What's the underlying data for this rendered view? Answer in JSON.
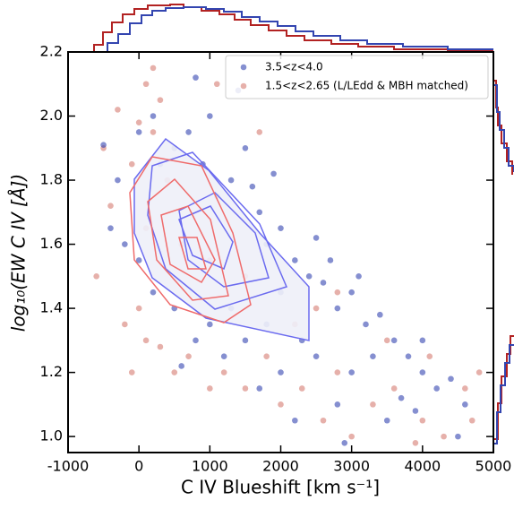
{
  "chart_data": {
    "type": "scatter",
    "xlabel": "C IV Blueshift [km s⁻¹]",
    "ylabel": "log₁₀(EW C IV [Å])",
    "xlim": [
      -1000,
      5000
    ],
    "ylim": [
      0.95,
      2.2
    ],
    "xticks": [
      -1000,
      0,
      1000,
      2000,
      3000,
      4000,
      5000
    ],
    "yticks": [
      {
        "value": 1,
        "label": "1.0"
      },
      1.2,
      1.4,
      1.6,
      1.8,
      {
        "value": 2,
        "label": "2.0"
      },
      2.2
    ],
    "legend": "upper right",
    "series": [
      {
        "name": "3.5<z<4.0",
        "color": "#3345b0",
        "x": [
          -500,
          -300,
          0,
          200,
          300,
          500,
          700,
          900,
          1000,
          1100,
          1300,
          1500,
          1600,
          1700,
          1800,
          2000,
          2200,
          2400,
          2600,
          2800,
          3000,
          3200,
          3400,
          3600,
          3800,
          4000,
          4200,
          4400,
          4600,
          3000,
          2800,
          3500,
          3700,
          2500,
          2300,
          2000,
          1800,
          1500,
          1200,
          1000,
          800,
          500,
          200,
          0,
          -200,
          1300,
          2000,
          3300,
          4000,
          3900,
          2900,
          4500,
          1900,
          2500,
          2700,
          3100,
          600,
          1700,
          2200,
          1400,
          800,
          -400
        ],
        "y": [
          1.91,
          1.8,
          1.95,
          2.0,
          1.85,
          1.9,
          1.95,
          1.85,
          2.0,
          1.75,
          1.8,
          1.9,
          1.78,
          1.7,
          1.6,
          1.65,
          1.55,
          1.5,
          1.48,
          1.4,
          1.45,
          1.35,
          1.38,
          1.3,
          1.25,
          1.2,
          1.15,
          1.18,
          1.1,
          1.2,
          1.1,
          1.05,
          1.12,
          1.25,
          1.3,
          1.2,
          1.35,
          1.3,
          1.25,
          1.35,
          1.3,
          1.4,
          1.45,
          1.55,
          1.6,
          1.4,
          1.45,
          1.25,
          1.3,
          1.08,
          0.98,
          1.0,
          1.82,
          1.62,
          1.55,
          1.5,
          1.22,
          1.15,
          1.05,
          2.08,
          2.12,
          1.65
        ]
      },
      {
        "name": "1.5<z<2.65 (L/LEdd & MBH matched)",
        "color": "#c0392b",
        "x": [
          -600,
          -500,
          -400,
          -300,
          -100,
          0,
          100,
          200,
          300,
          400,
          -200,
          0,
          100,
          300,
          500,
          700,
          1000,
          1200,
          1500,
          1800,
          2000,
          2300,
          2600,
          2800,
          3000,
          3300,
          3600,
          4000,
          4300,
          4600,
          4800,
          4700,
          4100,
          3500,
          2800,
          2500,
          1500,
          1000,
          600,
          100,
          1100,
          1700,
          -100,
          200,
          3900,
          2200
        ],
        "y": [
          1.5,
          1.9,
          1.72,
          2.02,
          1.85,
          1.98,
          2.1,
          1.95,
          2.05,
          1.8,
          1.35,
          1.4,
          1.3,
          1.28,
          1.2,
          1.25,
          1.15,
          1.2,
          1.15,
          1.25,
          1.1,
          1.15,
          1.05,
          1.2,
          1.0,
          1.1,
          1.15,
          1.05,
          1.0,
          1.15,
          1.2,
          1.05,
          1.25,
          1.3,
          1.45,
          1.4,
          1.5,
          1.55,
          1.6,
          1.65,
          2.1,
          1.95,
          1.2,
          2.15,
          0.98,
          1.35
        ]
      }
    ]
  }
}
